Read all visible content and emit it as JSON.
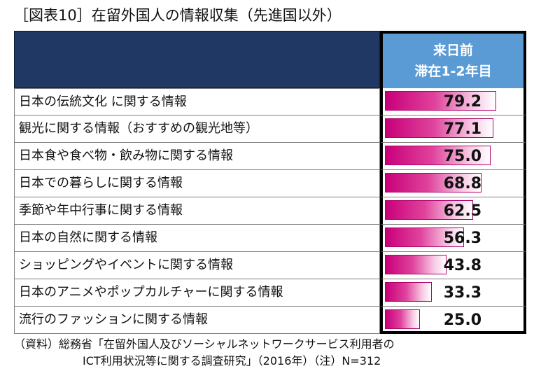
{
  "title": "［図表10］在留外国人の情報収集（先進国以外）",
  "header": {
    "line1": "来日前",
    "line2": "滞在1-2年目"
  },
  "chart_data": {
    "type": "bar",
    "categories": [
      "日本の伝統文化 に関する情報",
      "観光に関する情報（おすすめの観光地等）",
      "日本食や食べ物・飲み物に関する情報",
      "日本での暮らしに関する情報",
      "季節や年中行事に関する情報",
      "日本の自然に関する情報",
      "ショッピングやイベントに関する情報",
      "日本のアニメやポップカルチャーに関する情報",
      "流行のファッションに関する情報"
    ],
    "values": [
      79.2,
      77.1,
      75.0,
      68.8,
      62.5,
      56.3,
      43.8,
      33.3,
      25.0
    ],
    "value_labels": [
      "79.2",
      "77.1",
      "75.0",
      "68.8",
      "62.5",
      "56.3",
      "43.8",
      "33.3",
      "25.0"
    ],
    "ylim": [
      0,
      100
    ],
    "colors": {
      "bar": "#c8007a",
      "header_left": "#1f3864",
      "header_right": "#5b9bd5"
    }
  },
  "source": {
    "line1": "（資料）総務省「在留外国人及びソーシャルネットワークサービス利用者の",
    "line2": "ICT利用状況等に関する調査研究」（2016年）（注）N=312"
  }
}
